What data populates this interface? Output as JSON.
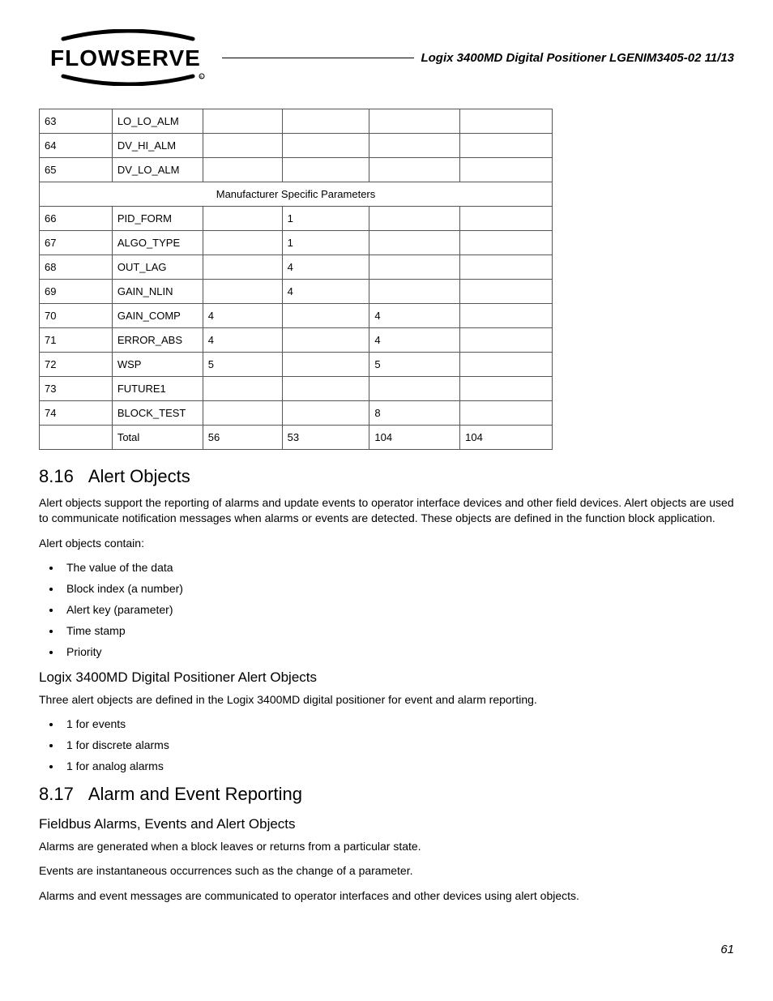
{
  "header": {
    "logo_text": "FLOWSERVE",
    "doc_title": "Logix 3400MD Digital Positioner LGENIM3405-02 11/13"
  },
  "table": {
    "rows_a": [
      [
        "63",
        "LO_LO_ALM",
        "",
        "",
        "",
        ""
      ],
      [
        "64",
        "DV_HI_ALM",
        "",
        "",
        "",
        ""
      ],
      [
        "65",
        "DV_LO_ALM",
        "",
        "",
        "",
        ""
      ]
    ],
    "section_header": "Manufacturer Specific Parameters",
    "rows_b": [
      [
        "66",
        "PID_FORM",
        "",
        "1",
        "",
        ""
      ],
      [
        "67",
        "ALGO_TYPE",
        "",
        "1",
        "",
        ""
      ],
      [
        "68",
        "OUT_LAG",
        "",
        "4",
        "",
        ""
      ],
      [
        "69",
        "GAIN_NLIN",
        "",
        "4",
        "",
        ""
      ],
      [
        "70",
        "GAIN_COMP",
        "4",
        "",
        "4",
        ""
      ],
      [
        "71",
        "ERROR_ABS",
        "4",
        "",
        "4",
        ""
      ],
      [
        "72",
        "WSP",
        "5",
        "",
        "5",
        ""
      ],
      [
        "73",
        "FUTURE1",
        "",
        "",
        "",
        ""
      ],
      [
        "74",
        "BLOCK_TEST",
        "",
        "",
        "8",
        ""
      ],
      [
        "",
        "Total",
        "56",
        "53",
        "104",
        "104"
      ]
    ]
  },
  "sections": {
    "s1_num": "8.16",
    "s1_title": "Alert Objects",
    "s1_p1": "Alert objects support the reporting of alarms and update events to operator interface devices and other field devices.  Alert objects are used to communicate notification messages when alarms or events are detected.  These objects are defined in the function block application.",
    "s1_p2": "Alert objects contain:",
    "s1_list": [
      "The value of the data",
      "Block index (a number)",
      "Alert key (parameter)",
      "Time stamp",
      "Priority"
    ],
    "s1_sub_title": "Logix 3400MD Digital Positioner Alert Objects",
    "s1_sub_p": "Three alert objects are defined in the Logix 3400MD digital positioner for event and alarm reporting.",
    "s1_sub_list": [
      "1 for events",
      "1 for discrete alarms",
      "1 for analog alarms"
    ],
    "s2_num": "8.17",
    "s2_title": "Alarm and Event Reporting",
    "s2_sub_title": "Fieldbus Alarms, Events and Alert Objects",
    "s2_p1": "Alarms are generated when a block leaves or returns from a particular state.",
    "s2_p2": "Events are instantaneous occurrences such as the change of a parameter.",
    "s2_p3": "Alarms and event messages are communicated to operator interfaces and other devices using alert objects."
  },
  "page_number": "61"
}
